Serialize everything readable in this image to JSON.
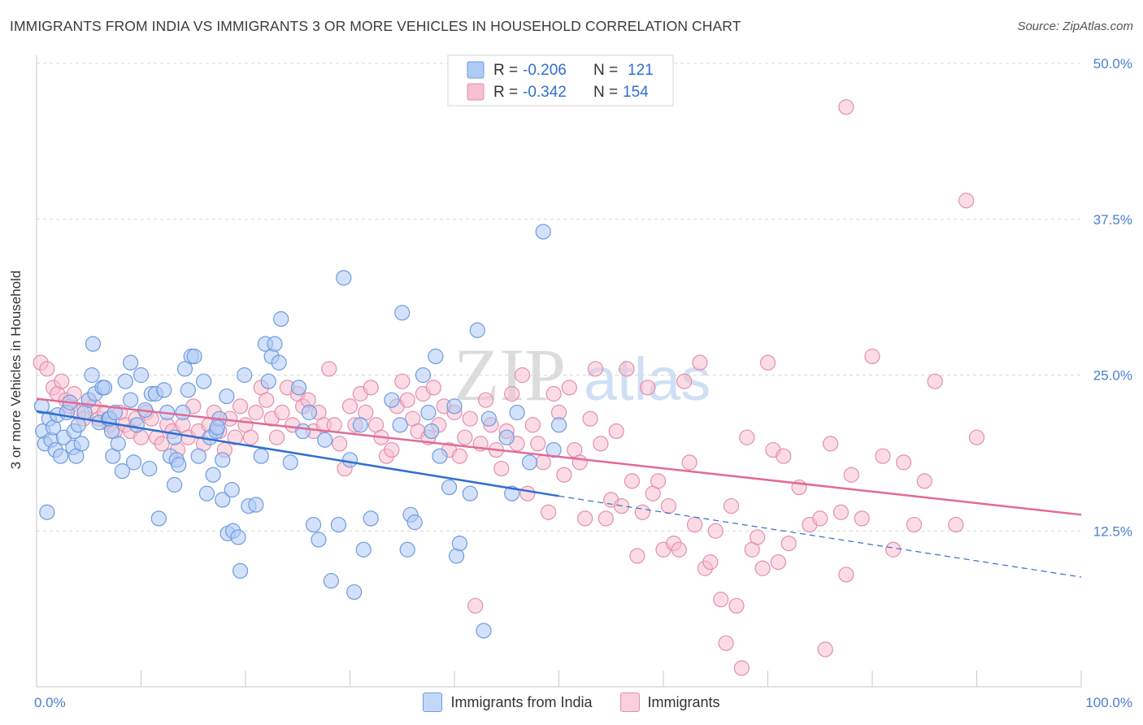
{
  "header": {
    "title": "IMMIGRANTS FROM INDIA VS IMMIGRANTS 3 OR MORE VEHICLES IN HOUSEHOLD CORRELATION CHART",
    "source": "Source: ZipAtlas.com"
  },
  "watermark": {
    "zip": "ZIP",
    "atlas": "atlas"
  },
  "legend_box": {
    "rows": [
      {
        "r_label": "R = ",
        "r_value": "-0.206",
        "n_label": "N = ",
        "n_value": "121",
        "color": "#aecbf5",
        "stroke": "#6e9be0"
      },
      {
        "r_label": "R = ",
        "r_value": "-0.342",
        "n_label": "N = ",
        "n_value": "154",
        "color": "#f7bfd0",
        "stroke": "#e48fab"
      }
    ]
  },
  "colors": {
    "india_fill": "#aecbf5",
    "india_stroke": "#6e9be0",
    "india_line": "#2f6fd0",
    "imm_fill": "#f7bfd0",
    "imm_stroke": "#e48fab",
    "imm_line": "#e06b95",
    "tick_label": "#4a7fd0",
    "grid": "#d8d8d8"
  },
  "chart_data": {
    "type": "scatter",
    "title": "IMMIGRANTS FROM INDIA VS IMMIGRANTS 3 OR MORE VEHICLES IN HOUSEHOLD CORRELATION CHART",
    "xlabel": "",
    "ylabel": "3 or more Vehicles in Household",
    "xlim": [
      0,
      100
    ],
    "ylim": [
      0,
      50
    ],
    "x_tick_labels": [
      "0.0%",
      "100.0%"
    ],
    "y_ticks": [
      12.5,
      25.0,
      37.5,
      50.0
    ],
    "y_tick_labels": [
      "12.5%",
      "25.0%",
      "37.5%",
      "50.0%"
    ],
    "grid": "horizontal dashed",
    "legend": "top-center and bottom",
    "series": [
      {
        "name": "Immigrants from India",
        "trend": {
          "x0": 0,
          "y0": 22.1,
          "x1": 50,
          "y1": 15.3,
          "dashed_to_x": 100,
          "dashed_to_y": 8.8
        },
        "points": [
          [
            0.5,
            22.5
          ],
          [
            0.6,
            20.5
          ],
          [
            0.8,
            19.5
          ],
          [
            1.0,
            14.0
          ],
          [
            1.2,
            21.5
          ],
          [
            1.4,
            19.8
          ],
          [
            1.6,
            20.8
          ],
          [
            1.8,
            19.0
          ],
          [
            2.0,
            21.8
          ],
          [
            2.3,
            18.5
          ],
          [
            2.6,
            20.0
          ],
          [
            2.9,
            22.0
          ],
          [
            3.2,
            22.8
          ],
          [
            3.5,
            19.2
          ],
          [
            3.6,
            20.5
          ],
          [
            3.8,
            18.5
          ],
          [
            4.0,
            21.0
          ],
          [
            4.3,
            19.5
          ],
          [
            4.6,
            22.0
          ],
          [
            5.0,
            23.0
          ],
          [
            5.3,
            25.0
          ],
          [
            5.6,
            23.5
          ],
          [
            6.0,
            21.2
          ],
          [
            6.3,
            24.0
          ],
          [
            6.5,
            24.0
          ],
          [
            6.9,
            21.5
          ],
          [
            7.2,
            20.5
          ],
          [
            5.4,
            27.5
          ],
          [
            7.0,
            21.5
          ],
          [
            7.3,
            18.5
          ],
          [
            7.5,
            22.0
          ],
          [
            7.8,
            19.5
          ],
          [
            8.2,
            17.3
          ],
          [
            8.5,
            24.5
          ],
          [
            9.0,
            23.0
          ],
          [
            9.3,
            18.0
          ],
          [
            9.6,
            21.0
          ],
          [
            9.0,
            26.0
          ],
          [
            10.0,
            25.0
          ],
          [
            10.4,
            22.2
          ],
          [
            10.8,
            17.5
          ],
          [
            11.0,
            23.5
          ],
          [
            11.4,
            23.5
          ],
          [
            11.7,
            13.5
          ],
          [
            12.2,
            23.8
          ],
          [
            12.5,
            22.0
          ],
          [
            12.8,
            18.5
          ],
          [
            13.2,
            16.2
          ],
          [
            13.4,
            18.2
          ],
          [
            13.6,
            17.8
          ],
          [
            14.0,
            22.0
          ],
          [
            13.2,
            20.0
          ],
          [
            14.5,
            23.8
          ],
          [
            14.2,
            25.5
          ],
          [
            14.8,
            26.5
          ],
          [
            15.1,
            26.5
          ],
          [
            15.5,
            18.5
          ],
          [
            16.0,
            24.5
          ],
          [
            16.3,
            15.5
          ],
          [
            16.6,
            20.0
          ],
          [
            16.9,
            17.0
          ],
          [
            17.2,
            20.5
          ],
          [
            17.5,
            21.5
          ],
          [
            17.8,
            18.2
          ],
          [
            18.2,
            23.3
          ],
          [
            17.3,
            20.8
          ],
          [
            17.8,
            15.0
          ],
          [
            18.3,
            12.3
          ],
          [
            18.8,
            12.5
          ],
          [
            19.3,
            12.0
          ],
          [
            19.5,
            9.3
          ],
          [
            18.7,
            15.8
          ],
          [
            19.9,
            25.0
          ],
          [
            20.3,
            14.5
          ],
          [
            21.0,
            14.6
          ],
          [
            21.5,
            18.5
          ],
          [
            21.9,
            27.5
          ],
          [
            22.2,
            24.5
          ],
          [
            22.5,
            26.5
          ],
          [
            22.8,
            27.5
          ],
          [
            23.2,
            26.0
          ],
          [
            23.4,
            29.5
          ],
          [
            24.3,
            18.0
          ],
          [
            25.1,
            24.0
          ],
          [
            25.5,
            20.5
          ],
          [
            26.1,
            22.0
          ],
          [
            26.5,
            13.0
          ],
          [
            27.0,
            11.8
          ],
          [
            27.6,
            19.8
          ],
          [
            28.2,
            8.5
          ],
          [
            28.9,
            13.0
          ],
          [
            29.4,
            32.8
          ],
          [
            30.0,
            18.2
          ],
          [
            30.4,
            7.6
          ],
          [
            31.3,
            11.0
          ],
          [
            31.0,
            21.0
          ],
          [
            32.0,
            13.5
          ],
          [
            34.0,
            23.0
          ],
          [
            34.8,
            21.0
          ],
          [
            35.0,
            30.0
          ],
          [
            35.5,
            11.0
          ],
          [
            35.8,
            13.8
          ],
          [
            36.2,
            13.2
          ],
          [
            37.0,
            25.0
          ],
          [
            37.5,
            22.0
          ],
          [
            37.8,
            20.5
          ],
          [
            38.2,
            26.5
          ],
          [
            38.6,
            18.5
          ],
          [
            39.5,
            16.0
          ],
          [
            40.0,
            22.5
          ],
          [
            40.2,
            10.5
          ],
          [
            40.5,
            11.5
          ],
          [
            41.5,
            15.5
          ],
          [
            42.2,
            28.6
          ],
          [
            42.8,
            4.5
          ],
          [
            43.3,
            21.5
          ],
          [
            45.0,
            20.0
          ],
          [
            45.5,
            15.5
          ],
          [
            46.0,
            22.0
          ],
          [
            47.2,
            18.0
          ],
          [
            48.5,
            36.5
          ],
          [
            49.5,
            19.0
          ],
          [
            50.0,
            21.0
          ]
        ]
      },
      {
        "name": "Immigrants",
        "trend": {
          "x0": 0,
          "y0": 23.1,
          "x1": 100,
          "y1": 13.8
        },
        "points": [
          [
            0.4,
            26.0
          ],
          [
            1.0,
            25.5
          ],
          [
            1.6,
            24.0
          ],
          [
            2.0,
            23.5
          ],
          [
            2.4,
            24.5
          ],
          [
            2.8,
            23.0
          ],
          [
            3.2,
            22.5
          ],
          [
            3.6,
            23.5
          ],
          [
            4.0,
            22.0
          ],
          [
            4.5,
            21.5
          ],
          [
            5.0,
            23.0
          ],
          [
            5.5,
            22.5
          ],
          [
            6.0,
            21.5
          ],
          [
            6.5,
            22.0
          ],
          [
            7.0,
            21.0
          ],
          [
            7.5,
            20.5
          ],
          [
            8.0,
            22.0
          ],
          [
            8.5,
            21.0
          ],
          [
            9.0,
            20.5
          ],
          [
            9.5,
            21.5
          ],
          [
            10.0,
            20.0
          ],
          [
            10.5,
            22.0
          ],
          [
            11.0,
            21.5
          ],
          [
            11.5,
            20.0
          ],
          [
            12.0,
            19.5
          ],
          [
            12.5,
            21.0
          ],
          [
            13.0,
            20.5
          ],
          [
            13.5,
            19.0
          ],
          [
            14.0,
            21.0
          ],
          [
            14.5,
            20.0
          ],
          [
            15.0,
            22.5
          ],
          [
            15.5,
            20.5
          ],
          [
            16.0,
            19.5
          ],
          [
            16.5,
            21.0
          ],
          [
            17.0,
            22.0
          ],
          [
            17.5,
            20.5
          ],
          [
            18.0,
            19.0
          ],
          [
            18.5,
            21.5
          ],
          [
            19.0,
            20.0
          ],
          [
            19.5,
            22.5
          ],
          [
            20.0,
            21.0
          ],
          [
            20.5,
            20.0
          ],
          [
            21.0,
            22.0
          ],
          [
            21.5,
            24.0
          ],
          [
            22.0,
            23.0
          ],
          [
            22.5,
            21.5
          ],
          [
            23.0,
            20.0
          ],
          [
            23.5,
            22.0
          ],
          [
            24.0,
            24.0
          ],
          [
            24.5,
            21.0
          ],
          [
            25.0,
            23.5
          ],
          [
            25.5,
            22.5
          ],
          [
            26.0,
            23.0
          ],
          [
            26.5,
            20.5
          ],
          [
            27.0,
            22.0
          ],
          [
            27.5,
            21.0
          ],
          [
            28.0,
            25.5
          ],
          [
            28.5,
            21.0
          ],
          [
            29.0,
            19.5
          ],
          [
            29.5,
            17.5
          ],
          [
            30.0,
            22.5
          ],
          [
            30.5,
            21.0
          ],
          [
            31.0,
            23.5
          ],
          [
            31.5,
            22.0
          ],
          [
            32.0,
            24.0
          ],
          [
            32.5,
            21.0
          ],
          [
            33.0,
            20.0
          ],
          [
            33.5,
            18.5
          ],
          [
            34.0,
            19.0
          ],
          [
            34.5,
            22.5
          ],
          [
            35.0,
            24.5
          ],
          [
            35.5,
            23.0
          ],
          [
            36.0,
            21.5
          ],
          [
            36.5,
            20.5
          ],
          [
            37.0,
            23.5
          ],
          [
            37.5,
            20.0
          ],
          [
            38.0,
            24.0
          ],
          [
            38.5,
            21.0
          ],
          [
            39.0,
            22.5
          ],
          [
            39.5,
            19.0
          ],
          [
            40.0,
            22.0
          ],
          [
            40.5,
            18.5
          ],
          [
            41.0,
            20.0
          ],
          [
            41.5,
            21.5
          ],
          [
            42.0,
            6.5
          ],
          [
            42.5,
            19.5
          ],
          [
            43.0,
            23.0
          ],
          [
            43.5,
            21.0
          ],
          [
            44.0,
            19.0
          ],
          [
            44.5,
            17.5
          ],
          [
            45.0,
            20.5
          ],
          [
            45.5,
            23.5
          ],
          [
            46.0,
            19.5
          ],
          [
            46.5,
            25.0
          ],
          [
            47.0,
            15.5
          ],
          [
            47.5,
            21.0
          ],
          [
            48.0,
            19.5
          ],
          [
            48.5,
            18.0
          ],
          [
            49.0,
            14.0
          ],
          [
            49.5,
            23.5
          ],
          [
            50.0,
            22.0
          ],
          [
            50.5,
            17.0
          ],
          [
            51.0,
            24.0
          ],
          [
            51.5,
            19.0
          ],
          [
            52.0,
            18.0
          ],
          [
            52.5,
            13.5
          ],
          [
            53.0,
            21.5
          ],
          [
            53.5,
            25.5
          ],
          [
            54.0,
            19.5
          ],
          [
            54.5,
            13.5
          ],
          [
            55.0,
            15.0
          ],
          [
            55.5,
            20.5
          ],
          [
            56.0,
            14.5
          ],
          [
            56.5,
            25.5
          ],
          [
            57.0,
            16.5
          ],
          [
            57.5,
            10.5
          ],
          [
            58.0,
            14.0
          ],
          [
            58.5,
            24.0
          ],
          [
            59.0,
            15.5
          ],
          [
            59.5,
            16.5
          ],
          [
            60.0,
            11.0
          ],
          [
            60.5,
            14.5
          ],
          [
            61.0,
            11.5
          ],
          [
            61.5,
            11.0
          ],
          [
            62.0,
            24.5
          ],
          [
            62.5,
            18.0
          ],
          [
            63.0,
            13.0
          ],
          [
            63.5,
            26.0
          ],
          [
            64.0,
            9.5
          ],
          [
            64.5,
            10.0
          ],
          [
            65.0,
            12.5
          ],
          [
            65.5,
            7.0
          ],
          [
            66.0,
            3.5
          ],
          [
            66.5,
            14.5
          ],
          [
            67.0,
            6.5
          ],
          [
            67.5,
            1.5
          ],
          [
            68.0,
            20.0
          ],
          [
            68.5,
            11.0
          ],
          [
            69.0,
            12.0
          ],
          [
            69.5,
            9.5
          ],
          [
            70.0,
            26.0
          ],
          [
            70.5,
            19.0
          ],
          [
            71.0,
            10.0
          ],
          [
            71.5,
            18.5
          ],
          [
            72.0,
            11.5
          ],
          [
            73.0,
            16.0
          ],
          [
            74.0,
            13.0
          ],
          [
            75.0,
            13.5
          ],
          [
            75.5,
            3.0
          ],
          [
            76.0,
            19.5
          ],
          [
            77.0,
            14.0
          ],
          [
            77.5,
            9.0
          ],
          [
            78.0,
            17.0
          ],
          [
            79.0,
            13.5
          ],
          [
            80.0,
            26.5
          ],
          [
            81.0,
            18.5
          ],
          [
            82.0,
            11.0
          ],
          [
            83.0,
            18.0
          ],
          [
            84.0,
            13.0
          ],
          [
            85.0,
            16.5
          ],
          [
            86.0,
            24.5
          ],
          [
            88.0,
            13.0
          ],
          [
            89.0,
            39.0
          ],
          [
            90.0,
            20.0
          ],
          [
            77.5,
            46.5
          ]
        ]
      }
    ]
  }
}
